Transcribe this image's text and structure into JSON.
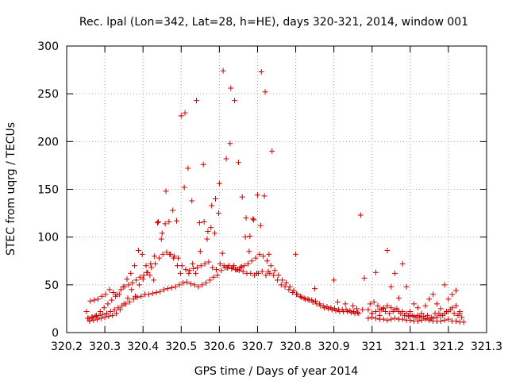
{
  "chart_data": {
    "type": "scatter",
    "title": "Rec. lpal (Lon=342, Lat=28, h=HE), days 320-321, 2014, window 001",
    "xlabel": "GPS time / Days of year 2014",
    "ylabel": "STEC from uqrg / TECUs",
    "xlim": [
      320.2,
      321.3
    ],
    "ylim": [
      0,
      300
    ],
    "xticks": [
      "320.2",
      "320.3",
      "320.4",
      "320.5",
      "320.6",
      "320.7",
      "320.8",
      "320.9",
      "321",
      "321.1",
      "321.2",
      "321.3"
    ],
    "yticks": [
      "0",
      "50",
      "100",
      "150",
      "200",
      "250",
      "300"
    ],
    "grid": true,
    "marker": "+",
    "color": "#cc0000",
    "series": [
      {
        "x": [
          320.252,
          320.262,
          320.272,
          320.282,
          320.292,
          320.302,
          320.312,
          320.322,
          320.332,
          320.342,
          320.352,
          320.362,
          320.372,
          320.382,
          320.392,
          320.402,
          320.412,
          320.422,
          320.432,
          320.442,
          320.452,
          320.462,
          320.472,
          320.482,
          320.492,
          320.502,
          320.512,
          320.522,
          320.532,
          320.542,
          320.552,
          320.562,
          320.572,
          320.582,
          320.592,
          320.602,
          320.612,
          320.622,
          320.632,
          320.642,
          320.652,
          320.662,
          320.672,
          320.682,
          320.692,
          320.702,
          320.712,
          320.722,
          320.732,
          320.742,
          320.752,
          320.762,
          320.772,
          320.782,
          320.792,
          320.802,
          320.812,
          320.822,
          320.832,
          320.842,
          320.852,
          320.862,
          320.872,
          320.882,
          320.892,
          320.902,
          320.912,
          320.922,
          320.932,
          320.942,
          320.952,
          320.962
        ],
        "y": [
          22,
          33,
          34,
          35,
          38,
          40,
          45,
          42,
          40,
          45,
          48,
          50,
          52,
          55,
          58,
          60,
          63,
          68,
          72,
          78,
          82,
          84,
          82,
          80,
          78,
          70,
          66,
          65,
          67,
          68,
          70,
          72,
          74,
          68,
          66,
          72,
          70,
          68,
          67,
          66,
          65,
          64,
          62,
          62,
          60,
          62,
          64,
          60,
          62,
          60,
          55,
          50,
          48,
          45,
          42,
          40,
          38,
          36,
          35,
          34,
          33,
          30,
          28,
          27,
          26,
          25,
          24,
          24,
          24,
          23,
          22,
          21
        ]
      },
      {
        "x": [
          320.255,
          320.265,
          320.275,
          320.285,
          320.295,
          320.305,
          320.315,
          320.325,
          320.335,
          320.345,
          320.355,
          320.365,
          320.375,
          320.385,
          320.395,
          320.405,
          320.415,
          320.425,
          320.435,
          320.445,
          320.455,
          320.465,
          320.475,
          320.485,
          320.495,
          320.505,
          320.515,
          320.525,
          320.535,
          320.545,
          320.555,
          320.565,
          320.575,
          320.585,
          320.595,
          320.605,
          320.615,
          320.625,
          320.635,
          320.645,
          320.655,
          320.665,
          320.675,
          320.685,
          320.695,
          320.705,
          320.715,
          320.725,
          320.735,
          320.745,
          320.755,
          320.765,
          320.775,
          320.785,
          320.795,
          320.805,
          320.815,
          320.825,
          320.835,
          320.845,
          320.855,
          320.865,
          320.875,
          320.885,
          320.895,
          320.905,
          320.915,
          320.925,
          320.935,
          320.945,
          320.955,
          320.965,
          320.975
        ],
        "y": [
          15,
          16,
          17,
          18,
          19,
          20,
          22,
          24,
          26,
          28,
          30,
          32,
          35,
          37,
          38,
          40,
          40,
          41,
          42,
          43,
          45,
          46,
          47,
          48,
          50,
          52,
          53,
          51,
          50,
          48,
          50,
          52,
          55,
          58,
          60,
          65,
          68,
          70,
          68,
          66,
          68,
          70,
          72,
          75,
          78,
          82,
          80,
          75,
          70,
          65,
          60,
          55,
          52,
          48,
          44,
          40,
          37,
          35,
          34,
          32,
          30,
          28,
          26,
          25,
          24,
          23,
          22,
          22,
          22,
          21,
          20,
          20,
          24
        ]
      },
      {
        "x": [
          320.258,
          320.268,
          320.278,
          320.288,
          320.298,
          320.308,
          320.318,
          320.328,
          320.338,
          320.348,
          320.358,
          320.368,
          320.378,
          320.388,
          320.398,
          320.408,
          320.418,
          320.428,
          320.438,
          320.448,
          320.458,
          320.468,
          320.478,
          320.488,
          320.498,
          320.508,
          320.518,
          320.528,
          320.538,
          320.548,
          320.558,
          320.568,
          320.578,
          320.588,
          320.598,
          320.608,
          320.618,
          320.628,
          320.638,
          320.648,
          320.658,
          320.668,
          320.678,
          320.688,
          320.698,
          320.708,
          320.718,
          320.728,
          320.738
        ],
        "y": [
          15,
          16,
          18,
          22,
          26,
          30,
          34,
          38,
          40,
          48,
          56,
          62,
          70,
          86,
          82,
          70,
          60,
          55,
          115,
          98,
          114,
          116,
          128,
          117,
          62,
          152,
          172,
          138,
          62,
          115,
          176,
          98,
          110,
          104,
          125,
          83,
          182,
          198,
          70,
          66,
          69,
          100,
          85,
          119,
          62,
          112,
          143,
          64,
          190
        ]
      },
      {
        "x": [
          320.26,
          320.27,
          320.28,
          320.29,
          320.3,
          320.31,
          320.32,
          320.33,
          320.34,
          320.35,
          320.36,
          320.37,
          320.38,
          320.39,
          320.4,
          320.41,
          320.42,
          320.43,
          320.44,
          320.45,
          320.46,
          320.47,
          320.48,
          320.49,
          320.5,
          320.51,
          320.52,
          320.53,
          320.54,
          320.55,
          320.56,
          320.57,
          320.58,
          320.59,
          320.6,
          320.61,
          320.62,
          320.63,
          320.64,
          320.65,
          320.66,
          320.67,
          320.68,
          320.69,
          320.7,
          320.71,
          320.72,
          320.73
        ],
        "y": [
          12,
          13,
          14,
          15,
          16,
          17,
          18,
          20,
          24,
          30,
          36,
          45,
          38,
          50,
          56,
          63,
          72,
          80,
          116,
          104,
          148,
          82,
          78,
          70,
          227,
          230,
          62,
          72,
          243,
          85,
          116,
          106,
          133,
          140,
          156,
          274,
          68,
          256,
          243,
          178,
          142,
          120,
          101,
          118,
          144,
          273,
          252,
          82
        ]
      },
      {
        "x": [
          320.8,
          320.85,
          320.9,
          320.91,
          320.93,
          320.95,
          320.96,
          320.97,
          320.98,
          320.99,
          321.0,
          321.01,
          321.02,
          321.03,
          321.04,
          321.05,
          321.06,
          321.07,
          321.08,
          321.09,
          321.1,
          321.11,
          321.12,
          321.13,
          321.14,
          321.15,
          321.16,
          321.17,
          321.18,
          321.19,
          321.2,
          321.21,
          321.22,
          321.23
        ],
        "y": [
          82,
          46,
          55,
          32,
          30,
          28,
          25,
          123,
          57,
          24,
          20,
          63,
          18,
          25,
          86,
          48,
          62,
          36,
          72,
          48,
          22,
          30,
          26,
          20,
          28,
          35,
          40,
          30,
          25,
          50,
          35,
          40,
          44,
          22
        ]
      },
      {
        "x": [
          320.99,
          321.0,
          321.01,
          321.02,
          321.03,
          321.04,
          321.05,
          321.06,
          321.07,
          321.08,
          321.09,
          321.1,
          321.11,
          321.12,
          321.13,
          321.14,
          321.15,
          321.16,
          321.17,
          321.18,
          321.19,
          321.2,
          321.21,
          321.22,
          321.23,
          321.24
        ],
        "y": [
          15,
          16,
          15,
          14,
          14,
          13,
          14,
          15,
          14,
          14,
          13,
          13,
          12,
          12,
          13,
          14,
          13,
          12,
          12,
          12,
          13,
          14,
          12,
          12,
          11,
          11
        ]
      },
      {
        "x": [
          320.995,
          321.005,
          321.015,
          321.025,
          321.035,
          321.045,
          321.055,
          321.065,
          321.075,
          321.085,
          321.095,
          321.105,
          321.115,
          321.125,
          321.135,
          321.145,
          321.155,
          321.165,
          321.175,
          321.185,
          321.195,
          321.205,
          321.215,
          321.225,
          321.235
        ],
        "y": [
          30,
          32,
          28,
          24,
          22,
          20,
          22,
          25,
          20,
          18,
          17,
          18,
          16,
          16,
          17,
          18,
          16,
          20,
          20,
          18,
          22,
          24,
          20,
          18,
          16
        ]
      },
      {
        "x": [
          321.0,
          321.01,
          321.02,
          321.03,
          321.04,
          321.05,
          321.06,
          321.07,
          321.08,
          321.09,
          321.1,
          321.11,
          321.12,
          321.13,
          321.14,
          321.15,
          321.16,
          321.17,
          321.18,
          321.19,
          321.2,
          321.21,
          321.22,
          321.23
        ],
        "y": [
          20,
          22,
          24,
          26,
          28,
          26,
          24,
          22,
          22,
          20,
          18,
          17,
          18,
          17,
          15,
          14,
          15,
          16,
          18,
          20,
          22,
          26,
          28,
          20
        ]
      }
    ]
  }
}
